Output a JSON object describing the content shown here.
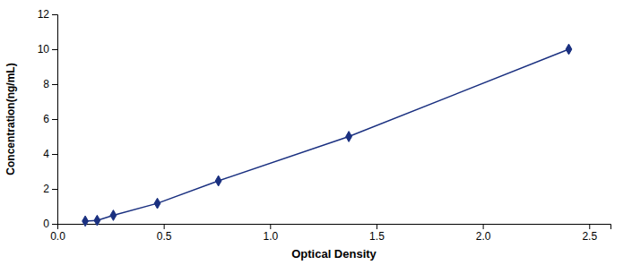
{
  "chart_data": {
    "type": "line",
    "x": [
      0.131,
      0.187,
      0.263,
      0.47,
      0.757,
      1.37,
      2.404
    ],
    "values": [
      0.156,
      0.195,
      0.488,
      1.172,
      2.461,
      5.0,
      10.0
    ],
    "color": "#1a3080",
    "marker": "diamond",
    "line_style": "solid",
    "xlabel": "Optical Density",
    "ylabel": "Concentration(ng/mL)",
    "xlim": [
      0.0,
      2.6
    ],
    "ylim": [
      0,
      12
    ],
    "xticks": [
      {
        "value": 0,
        "label": "0.0"
      },
      0.5,
      {
        "value": 1,
        "label": "1.0"
      },
      1.5,
      {
        "value": 2,
        "label": "2.0"
      },
      2.5
    ],
    "yticks": [
      0,
      2,
      4,
      6,
      8,
      10,
      12
    ],
    "grid": false
  }
}
